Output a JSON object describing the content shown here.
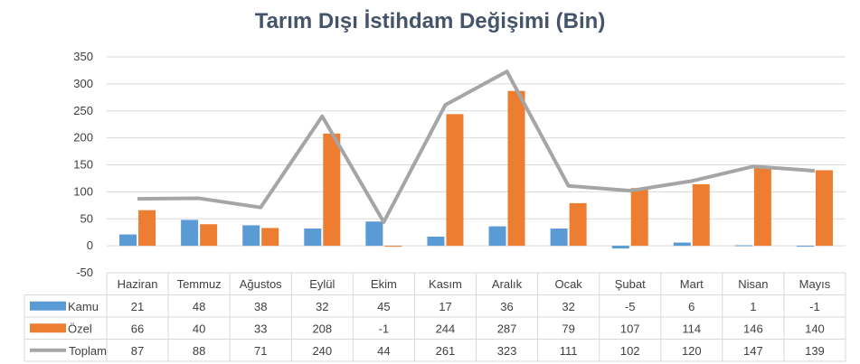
{
  "chart_data": {
    "type": "bar",
    "title": "Tarım Dışı İstihdam Değişimi (Bin)",
    "categories": [
      "Haziran",
      "Temmuz",
      "Ağustos",
      "Eylül",
      "Ekim",
      "Kasım",
      "Aralık",
      "Ocak",
      "Şubat",
      "Mart",
      "Nisan",
      "Mayıs"
    ],
    "series": [
      {
        "name": "Kamu",
        "kind": "bar",
        "color": "#5b9bd5",
        "values": [
          21,
          48,
          38,
          32,
          45,
          17,
          36,
          32,
          -5,
          6,
          1,
          -1
        ]
      },
      {
        "name": "Özel",
        "kind": "bar",
        "color": "#ed7d31",
        "values": [
          66,
          40,
          33,
          208,
          -1,
          244,
          287,
          79,
          107,
          114,
          146,
          140
        ]
      },
      {
        "name": "Toplam",
        "kind": "line",
        "color": "#a5a5a5",
        "values": [
          87,
          88,
          71,
          240,
          44,
          261,
          323,
          111,
          102,
          120,
          147,
          139
        ]
      }
    ],
    "ylim": [
      -50,
      350
    ],
    "yticks": [
      -50,
      0,
      50,
      100,
      150,
      200,
      250,
      300,
      350
    ],
    "grid": true,
    "legend": "data-table"
  }
}
